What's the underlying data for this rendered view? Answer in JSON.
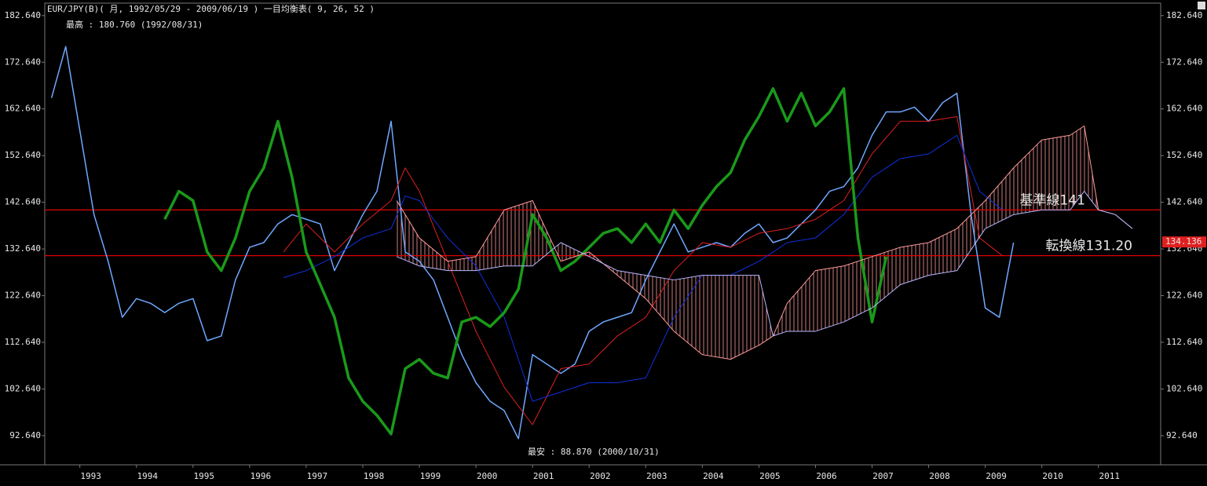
{
  "chart_data": {
    "type": "line",
    "title": "EUR/JPY(B)( 月, 1992/05/29 - 2009/06/19 )   一目均衡表( 9, 26, 52 )",
    "xlim": [
      1992.38,
      2012.1
    ],
    "xticks": [
      1993,
      1994,
      1995,
      1996,
      1997,
      1998,
      1999,
      2000,
      2001,
      2002,
      2003,
      2004,
      2005,
      2006,
      2007,
      2008,
      2009,
      2010,
      2011
    ],
    "ylim": [
      86.4,
      185.3
    ],
    "yticks": [
      {
        "value": 92.64,
        "label": "92.640"
      },
      {
        "value": 102.64,
        "label": "102.640"
      },
      {
        "value": 112.64,
        "label": "112.640"
      },
      {
        "value": 122.64,
        "label": "122.640"
      },
      {
        "value": 132.64,
        "label": "132.640"
      },
      {
        "value": 142.64,
        "label": "142.640"
      },
      {
        "value": 152.64,
        "label": "152.640"
      },
      {
        "value": 162.64,
        "label": "162.640"
      },
      {
        "value": 172.64,
        "label": "172.640"
      },
      {
        "value": 182.64,
        "label": "182.640"
      }
    ],
    "grid": false,
    "series": [
      {
        "color": "#6fa8ff",
        "width": 1.5,
        "x": [
          1992.5,
          1992.75,
          1993.0,
          1993.25,
          1993.5,
          1993.75,
          1994.0,
          1994.25,
          1994.5,
          1994.75,
          1995.0,
          1995.25,
          1995.5,
          1995.75,
          1996.0,
          1996.25,
          1996.5,
          1996.75,
          1997.0,
          1997.25,
          1997.5,
          1997.75,
          1998.0,
          1998.25,
          1998.5,
          1998.75,
          1999.0,
          1999.25,
          1999.5,
          1999.75,
          2000.0,
          2000.25,
          2000.5,
          2000.75,
          2001.0,
          2001.25,
          2001.5,
          2001.75,
          2002.0,
          2002.25,
          2002.5,
          2002.75,
          2003.0,
          2003.25,
          2003.5,
          2003.75,
          2004.0,
          2004.25,
          2004.5,
          2004.75,
          2005.0,
          2005.25,
          2005.5,
          2005.75,
          2006.0,
          2006.25,
          2006.5,
          2006.75,
          2007.0,
          2007.25,
          2007.5,
          2007.75,
          2008.0,
          2008.25,
          2008.5,
          2008.75,
          2009.0,
          2009.25,
          2009.5
        ],
        "values": [
          165,
          176,
          158,
          140,
          130,
          118,
          122,
          121,
          119,
          121,
          122,
          113,
          114,
          126,
          133,
          134,
          138,
          140,
          139,
          138,
          128,
          134,
          140,
          145,
          160,
          132,
          130,
          126,
          118,
          110,
          104,
          100,
          98,
          92,
          110,
          108,
          106,
          108,
          115,
          117,
          118,
          119,
          126,
          132,
          138,
          132,
          133,
          134,
          133,
          136,
          138,
          134,
          135,
          138,
          141,
          145,
          146,
          150,
          157,
          162,
          162,
          163,
          160,
          164,
          166,
          140,
          120,
          118,
          134
        ]
      },
      {
        "color": "#e02020",
        "width": 1,
        "x": [
          1996.6,
          1997.0,
          1997.5,
          1998.0,
          1998.5,
          1998.75,
          1999.0,
          1999.5,
          2000.0,
          2000.5,
          2001.0,
          2001.5,
          2002.0,
          2002.5,
          2003.0,
          2003.5,
          2004.0,
          2004.5,
          2005.0,
          2005.5,
          2006.0,
          2006.5,
          2007.0,
          2007.5,
          2008.0,
          2008.5,
          2008.9,
          2009.3
        ],
        "values": [
          132,
          138,
          132,
          138,
          143,
          150,
          145,
          130,
          115,
          103,
          95,
          107,
          108,
          114,
          118,
          128,
          134,
          133,
          136,
          137,
          139,
          143,
          153,
          160,
          160,
          161,
          135,
          131.2
        ]
      },
      {
        "color": "#1030e0",
        "width": 1,
        "x": [
          1996.6,
          1997.0,
          1997.5,
          1998.0,
          1998.5,
          1998.75,
          1999.0,
          1999.5,
          2000.0,
          2000.5,
          2001.0,
          2001.5,
          2002.0,
          2002.5,
          2003.0,
          2003.5,
          2004.0,
          2004.5,
          2005.0,
          2005.5,
          2006.0,
          2006.5,
          2007.0,
          2007.5,
          2008.0,
          2008.5,
          2008.9,
          2009.3
        ],
        "values": [
          126.5,
          128,
          131,
          135,
          137,
          144,
          143,
          135,
          129,
          118,
          100,
          102,
          104,
          104,
          105,
          118,
          127,
          127,
          130,
          134,
          135,
          140,
          148,
          152,
          153,
          157,
          145,
          141
        ]
      },
      {
        "color": "#1a9a1a",
        "width": 3.5,
        "x": [
          1994.5,
          1994.75,
          1995.0,
          1995.25,
          1995.5,
          1995.75,
          1996.0,
          1996.25,
          1996.5,
          1996.75,
          1997.0,
          1997.25,
          1997.5,
          1997.75,
          1998.0,
          1998.25,
          1998.5,
          1998.75,
          1999.0,
          1999.25,
          1999.5,
          1999.75,
          2000.0,
          2000.25,
          2000.5,
          2000.75,
          2001.0,
          2001.25,
          2001.5,
          2001.75,
          2002.0,
          2002.25,
          2002.5,
          2002.75,
          2003.0,
          2003.25,
          2003.5,
          2003.75,
          2004.0,
          2004.25,
          2004.5,
          2004.75,
          2005.0,
          2005.25,
          2005.5,
          2005.75,
          2006.0,
          2006.25,
          2006.5,
          2006.75,
          2007.0,
          2007.25
        ],
        "values": [
          139,
          145,
          143,
          132,
          128,
          135,
          145,
          150,
          160,
          148,
          132,
          125,
          118,
          105,
          100,
          97,
          93,
          107,
          109,
          106,
          105,
          117,
          118,
          116,
          119,
          124,
          140,
          135,
          128,
          130,
          133,
          136,
          137,
          134,
          138,
          134,
          141,
          137,
          142,
          146,
          149,
          156,
          161,
          167,
          160,
          166,
          159,
          162,
          167,
          135,
          117,
          131
        ]
      },
      {
        "color": "#ff9a9a",
        "width": 1,
        "x": [
          1998.6,
          1999.0,
          1999.5,
          2000.0,
          2000.5,
          2001.0,
          2001.5,
          2002.0,
          2002.5,
          2003.0,
          2003.5,
          2004.0,
          2004.5,
          2005.0,
          2005.25,
          2005.5,
          2006.0,
          2006.5,
          2007.0,
          2007.5,
          2008.0,
          2008.5,
          2009.0,
          2009.5,
          2010.0,
          2010.5,
          2010.75,
          2011.0,
          2011.3,
          2011.6
        ],
        "values": [
          143,
          135,
          130,
          131,
          141,
          143,
          130,
          132,
          127,
          122,
          115,
          110,
          109,
          112,
          114,
          121,
          128,
          129,
          131,
          133,
          134,
          137,
          143,
          150,
          156,
          157,
          159,
          141,
          140,
          137
        ]
      },
      {
        "color": "#b8b8ff",
        "width": 1,
        "x": [
          1998.6,
          1999.0,
          1999.5,
          2000.0,
          2000.5,
          2001.0,
          2001.5,
          2002.0,
          2002.5,
          2003.0,
          2003.5,
          2004.0,
          2004.5,
          2005.0,
          2005.25,
          2005.5,
          2006.0,
          2006.5,
          2007.0,
          2007.5,
          2008.0,
          2008.5,
          2009.0,
          2009.5,
          2010.0,
          2010.5,
          2010.75,
          2011.0,
          2011.3,
          2011.6
        ],
        "values": [
          131,
          129,
          128,
          128,
          129,
          129,
          134,
          131,
          128,
          127,
          126,
          127,
          127,
          127,
          114,
          115,
          115,
          117,
          120,
          125,
          127,
          128,
          137,
          140,
          141,
          141,
          145,
          141,
          140,
          137
        ]
      }
    ],
    "hlines": [
      {
        "value": 141,
        "color": "#e00000",
        "label": "基準線141"
      },
      {
        "value": 131.2,
        "color": "#e00000",
        "label": "転換線131.20"
      }
    ],
    "last_price": 134.136,
    "high_note": "最高 : 180.760 (1992/08/31)",
    "low_note": "最安 : 88.870 (2000/10/31)"
  }
}
